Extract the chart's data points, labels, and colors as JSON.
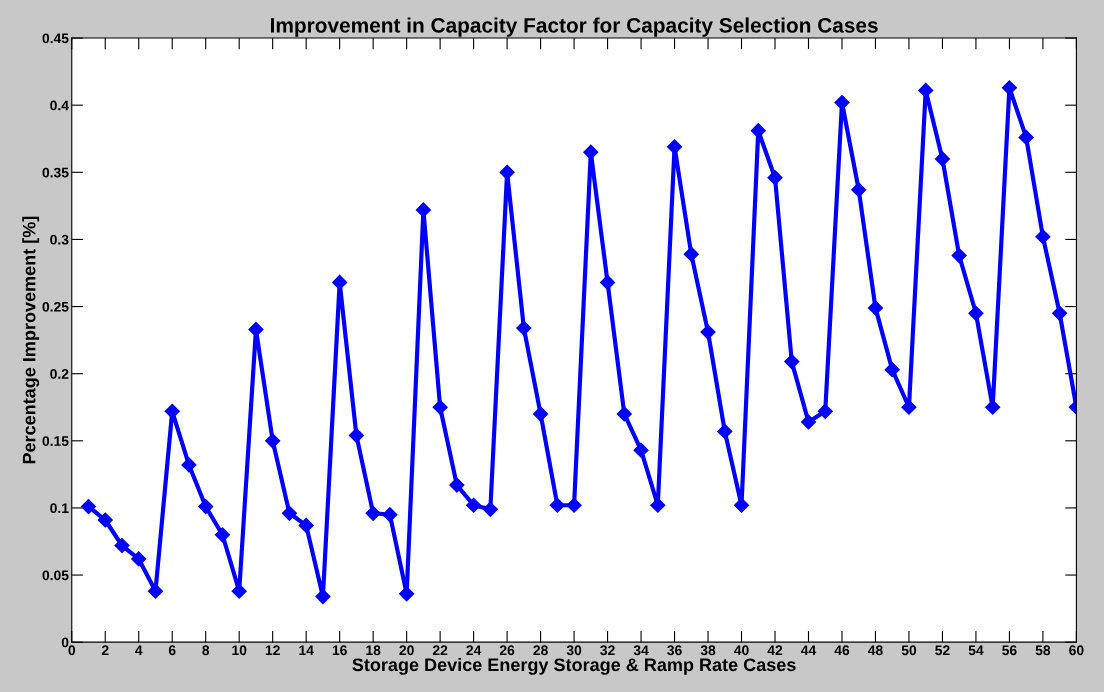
{
  "chart_data": {
    "type": "line",
    "title": "Improvement in Capacity Factor for Capacity Selection Cases",
    "xlabel": "Storage Device Energy Storage & Ramp Rate Cases",
    "ylabel": "Percentage Improvement [%]",
    "x": [
      1,
      2,
      3,
      4,
      5,
      6,
      7,
      8,
      9,
      10,
      11,
      12,
      13,
      14,
      15,
      16,
      17,
      18,
      19,
      20,
      21,
      22,
      23,
      24,
      25,
      26,
      27,
      28,
      29,
      30,
      31,
      32,
      33,
      34,
      35,
      36,
      37,
      38,
      39,
      40,
      41,
      42,
      43,
      44,
      45,
      46,
      47,
      48,
      49,
      50,
      51,
      52,
      53,
      54,
      55,
      56,
      57,
      58,
      59,
      60
    ],
    "series": [
      {
        "color": "#0000ff",
        "values": [
          0.101,
          0.091,
          0.072,
          0.062,
          0.038,
          0.172,
          0.132,
          0.101,
          0.08,
          0.038,
          0.233,
          0.15,
          0.096,
          0.087,
          0.034,
          0.268,
          0.154,
          0.096,
          0.095,
          0.036,
          0.322,
          0.175,
          0.117,
          0.102,
          0.099,
          0.35,
          0.234,
          0.17,
          0.102,
          0.102,
          0.365,
          0.268,
          0.17,
          0.143,
          0.102,
          0.369,
          0.289,
          0.231,
          0.157,
          0.102,
          0.381,
          0.346,
          0.209,
          0.164,
          0.172,
          0.402,
          0.337,
          0.249,
          0.203,
          0.175,
          0.411,
          0.36,
          0.288,
          0.245,
          0.175,
          0.413,
          0.376,
          0.302,
          0.245,
          0.175
        ]
      }
    ],
    "xlim": [
      0,
      60
    ],
    "xticks": [
      0,
      2,
      4,
      6,
      8,
      10,
      12,
      14,
      16,
      18,
      20,
      22,
      24,
      26,
      28,
      30,
      32,
      34,
      36,
      38,
      40,
      42,
      44,
      46,
      48,
      50,
      52,
      54,
      56,
      58,
      60
    ],
    "ylim": [
      0,
      0.45
    ],
    "yticks": [
      0,
      0.05,
      0.1,
      0.15,
      0.2,
      0.25,
      0.3,
      0.35,
      0.4,
      0.45
    ],
    "marker": "diamond",
    "line_style": "solid",
    "grid": false,
    "legend": false
  }
}
